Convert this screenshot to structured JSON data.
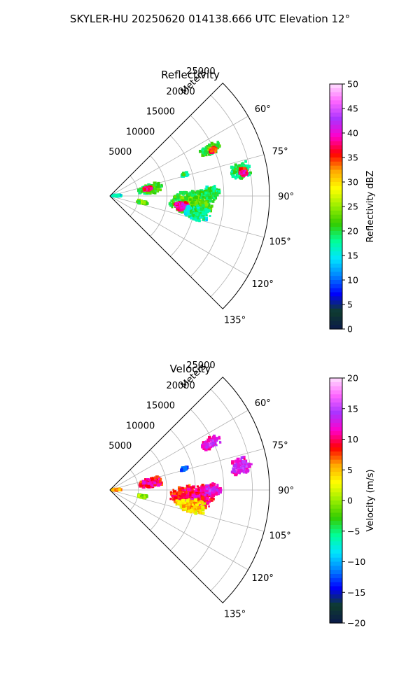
{
  "figure_title": "SKYLER-HU  20250620  014138.666 UTC Elevation 12°",
  "chart_data": [
    {
      "type": "heatmap",
      "projection": "polar-sector",
      "title": "Reflectivity",
      "radial_label": "Meters",
      "radial_ticks": [
        5000,
        10000,
        15000,
        20000,
        25000
      ],
      "radial_tick_labels": [
        "5000",
        "10000",
        "15000",
        "20000",
        "25000"
      ],
      "rmax": 28000,
      "angle_range_deg": [
        45,
        135
      ],
      "angle_ticks_deg": [
        60,
        75,
        90,
        105,
        120,
        135
      ],
      "angle_tick_labels": [
        "60°",
        "75°",
        "90°",
        "105°",
        "120°",
        "135°"
      ],
      "grid": true,
      "colorbar": {
        "label": "Reflectivity dBZ",
        "range": [
          0,
          50
        ],
        "ticks": [
          0,
          5,
          10,
          15,
          20,
          25,
          30,
          35,
          40,
          45,
          50
        ],
        "tick_labels": [
          "0",
          "5",
          "10",
          "15",
          "20",
          "25",
          "30",
          "35",
          "40",
          "45",
          "50"
        ],
        "colors": [
          "#0b1a4a",
          "#0f3d2c",
          "#0000ff",
          "#0080ff",
          "#00e5ff",
          "#00ff99",
          "#33cc00",
          "#99ee00",
          "#ffff00",
          "#ffaa00",
          "#ff0000",
          "#ff00cc",
          "#aa33ff",
          "#ff66ff",
          "#ffe0ff"
        ]
      },
      "echoes": [
        {
          "angle": 95,
          "range": 14500,
          "d_angle": 9,
          "d_range": 4200,
          "value": 24
        },
        {
          "angle": 98,
          "range": 12800,
          "d_angle": 4,
          "d_range": 1500,
          "value": 42
        },
        {
          "angle": 101,
          "range": 15500,
          "d_angle": 5,
          "d_range": 2500,
          "value": 20
        },
        {
          "angle": 88,
          "range": 17500,
          "d_angle": 4,
          "d_range": 2200,
          "value": 22
        },
        {
          "angle": 80,
          "range": 7200,
          "d_angle": 7,
          "d_range": 2300,
          "value": 24
        },
        {
          "angle": 79,
          "range": 6700,
          "d_angle": 3,
          "d_range": 900,
          "value": 40
        },
        {
          "angle": 79,
          "range": 23500,
          "d_angle": 4,
          "d_range": 2000,
          "value": 22
        },
        {
          "angle": 80,
          "range": 23700,
          "d_angle": 2,
          "d_range": 800,
          "value": 40
        },
        {
          "angle": 65,
          "range": 19500,
          "d_angle": 3,
          "d_range": 2000,
          "value": 24
        },
        {
          "angle": 66,
          "range": 19800,
          "d_angle": 1.5,
          "d_range": 700,
          "value": 38
        },
        {
          "angle": 101,
          "range": 5800,
          "d_angle": 3,
          "d_range": 1000,
          "value": 26
        },
        {
          "angle": 87,
          "range": 1200,
          "d_angle": 5,
          "d_range": 900,
          "value": 18
        },
        {
          "angle": 74,
          "range": 13600,
          "d_angle": 1.5,
          "d_range": 700,
          "value": 20
        }
      ]
    },
    {
      "type": "heatmap",
      "projection": "polar-sector",
      "title": "Velocity",
      "radial_label": "Meters",
      "radial_ticks": [
        5000,
        10000,
        15000,
        20000,
        25000
      ],
      "radial_tick_labels": [
        "5000",
        "10000",
        "15000",
        "20000",
        "25000"
      ],
      "rmax": 28000,
      "angle_range_deg": [
        45,
        135
      ],
      "angle_ticks_deg": [
        60,
        75,
        90,
        105,
        120,
        135
      ],
      "angle_tick_labels": [
        "60°",
        "75°",
        "90°",
        "105°",
        "120°",
        "135°"
      ],
      "grid": true,
      "colorbar": {
        "label": "Velocity (m/s)",
        "range": [
          -20,
          20
        ],
        "ticks": [
          -20,
          -15,
          -10,
          -5,
          0,
          5,
          10,
          15,
          20
        ],
        "tick_labels": [
          "−20",
          "−15",
          "−10",
          "−5",
          "0",
          "5",
          "10",
          "15",
          "20"
        ],
        "colors": [
          "#0b1a4a",
          "#0f3d2c",
          "#0000ff",
          "#0080ff",
          "#00e5ff",
          "#00ff99",
          "#33cc00",
          "#99ee00",
          "#ffff00",
          "#ffaa00",
          "#ff0000",
          "#ff00cc",
          "#aa33ff",
          "#ff66ff",
          "#ffe0ff"
        ]
      },
      "echoes": [
        {
          "angle": 95,
          "range": 14500,
          "d_angle": 9,
          "d_range": 4200,
          "value": 11
        },
        {
          "angle": 101,
          "range": 14500,
          "d_angle": 5,
          "d_range": 3000,
          "value": 6
        },
        {
          "angle": 90,
          "range": 17500,
          "d_angle": 4,
          "d_range": 2200,
          "value": 14
        },
        {
          "angle": 80,
          "range": 7200,
          "d_angle": 7,
          "d_range": 2300,
          "value": 12
        },
        {
          "angle": 80,
          "range": 23500,
          "d_angle": 4,
          "d_range": 2000,
          "value": 15
        },
        {
          "angle": 65,
          "range": 19500,
          "d_angle": 3,
          "d_range": 2000,
          "value": 15
        },
        {
          "angle": 101,
          "range": 5800,
          "d_angle": 3,
          "d_range": 1000,
          "value": 2
        },
        {
          "angle": 87,
          "range": 1200,
          "d_angle": 5,
          "d_range": 900,
          "value": 8
        },
        {
          "angle": 74,
          "range": 13600,
          "d_angle": 1.5,
          "d_range": 700,
          "value": -10
        }
      ]
    }
  ]
}
